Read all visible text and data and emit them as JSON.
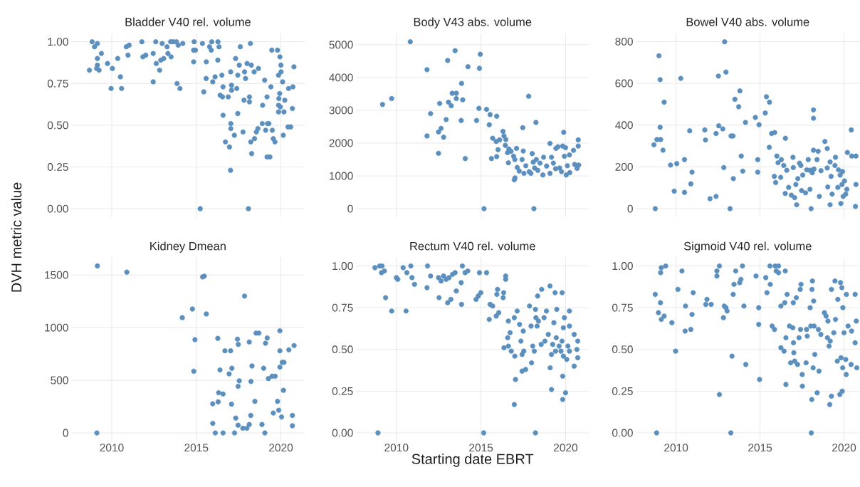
{
  "chart_data": [
    {
      "type": "scatter",
      "title": "Bladder V40 rel. volume",
      "color": "#5b8fbe",
      "grid": true,
      "tick_labels": "y",
      "xlim": [
        2007.6,
        2021.4
      ],
      "ylim": [
        -0.05,
        1.05
      ],
      "xticks": [
        2010,
        2015,
        2020
      ],
      "yticks": [
        {
          "value": 0,
          "label": "0.00"
        },
        {
          "value": 0.25,
          "label": "0.25"
        },
        {
          "value": 0.5,
          "label": "0.50"
        },
        {
          "value": 0.75,
          "label": "0.75"
        },
        {
          "value": 1,
          "label": "1.00"
        }
      ],
      "x": [
        2008.68,
        2008.84,
        2008.98,
        2009.15,
        2009.39,
        2009.15,
        2009.15,
        2009.11,
        2009.25,
        2009.75,
        2010.04,
        2009.96,
        2010.35,
        2010.51,
        2010.58,
        2010.86,
        2011.03,
        2010.96,
        2011.78,
        2011.84,
        2012.01,
        2012.45,
        2012.6,
        2012.63,
        2012.45,
        2012.83,
        2012.9,
        2013.07,
        2012.98,
        2013.27,
        2013.32,
        2013.48,
        2013.63,
        2013.82,
        2013.51,
        2013.93,
        2014.2,
        2013.86,
        2014.03,
        2014.84,
        2014.95,
        2014.87,
        2014.84,
        2015.23,
        2015.36,
        2015.59,
        2015.44,
        2015.58,
        2015.78,
        2015.91,
        2015.88,
        2016.28,
        2016.34,
        2015.97,
        2016.11,
        2016.27,
        2016.51,
        2016.41,
        2016.58,
        2016.55,
        2016.89,
        2016.58,
        2016.72,
        2016.96,
        2017.02,
        2017.03,
        2017.04,
        2017.04,
        2017.08,
        2017.08,
        2017.25,
        2017.32,
        2017.39,
        2017.45,
        2017.45,
        2017.54,
        2017.6,
        2017.76,
        2017.85,
        2017.91,
        2017.82,
        2018.0,
        2018.08,
        2018.14,
        2018.14,
        2018.2,
        2018.25,
        2018.22,
        2018.27,
        2018.42,
        2018.44,
        2018.55,
        2018.64,
        2018.67,
        2018.92,
        2018.9,
        2019.04,
        2019.1,
        2019.18,
        2019.21,
        2019.29,
        2019.18,
        2019.35,
        2019.41,
        2019.46,
        2019.49,
        2019.55,
        2019.65,
        2019.8,
        2019.94,
        2020.0,
        2020.01,
        2019.86,
        2019.93,
        2019.88,
        2019.86,
        2019.86,
        2019.97,
        2020.1,
        2020.18,
        2020.23,
        2020.14,
        2020.42,
        2020.58,
        2020.45,
        2020.71,
        2020.68,
        2020.77
      ],
      "values": [
        0.83,
        1.0,
        0.97,
        0.99,
        0.93,
        0.9,
        0.86,
        0.84,
        0.83,
        0.87,
        0.84,
        0.72,
        0.9,
        0.79,
        0.72,
        0.97,
        0.98,
        0.92,
        1.0,
        0.91,
        0.92,
        0.93,
        1.0,
        0.87,
        0.76,
        0.83,
        0.89,
        0.9,
        0.99,
        0.97,
        0.93,
        1.0,
        1.0,
        1.0,
        0.91,
        0.98,
        0.99,
        0.75,
        0.72,
        0.95,
        0.95,
        1.0,
        0.88,
        0.0,
        0.99,
        0.88,
        0.7,
        0.78,
        0.97,
        1.0,
        0.95,
        1.0,
        0.97,
        0.76,
        0.79,
        0.89,
        0.8,
        0.68,
        0.73,
        0.67,
        0.67,
        0.56,
        0.4,
        0.37,
        0.23,
        0.82,
        0.51,
        0.48,
        0.74,
        0.71,
        0.44,
        0.9,
        0.72,
        0.8,
        0.57,
        0.86,
        0.97,
        0.46,
        0.82,
        0.78,
        0.65,
        0.87,
        0.0,
        0.64,
        0.67,
        0.99,
        0.86,
        0.4,
        0.33,
        0.82,
        0.42,
        0.46,
        0.48,
        0.84,
        0.62,
        0.51,
        0.77,
        0.47,
        0.67,
        0.51,
        0.51,
        0.31,
        0.31,
        0.73,
        0.95,
        0.47,
        0.42,
        0.4,
        0.95,
        0.91,
        0.86,
        0.82,
        0.8,
        0.69,
        0.66,
        0.62,
        0.58,
        0.61,
        0.76,
        0.58,
        0.65,
        0.44,
        0.49,
        0.49,
        0.72,
        0.73,
        0.6,
        0.85
      ]
    },
    {
      "type": "scatter",
      "title": "Body V43 abs. volume",
      "color": "#5b8fbe",
      "grid": true,
      "tick_labels": "y",
      "xlim": [
        2007.6,
        2021.4
      ],
      "ylim": [
        -255,
        5345
      ],
      "xticks": [
        2010,
        2015,
        2020
      ],
      "yticks": [
        0,
        1000,
        2000,
        3000,
        4000,
        5000
      ],
      "x": [
        2009.18,
        2009.72,
        2010.82,
        2011.81,
        2011.81,
        2012.02,
        2012.49,
        2012.49,
        2012.56,
        2012.64,
        2012.79,
        2012.94,
        2013.03,
        2013.08,
        2013.24,
        2013.3,
        2013.47,
        2013.54,
        2013.54,
        2013.85,
        2013.83,
        2013.92,
        2014.07,
        2014.23,
        2014.74,
        2014.91,
        2014.96,
        2014.88,
        2015.18,
        2015.33,
        2015.54,
        2015.93,
        2015.49,
        2015.62,
        2015.69,
        2015.93,
        2016.01,
        2015.9,
        2016.1,
        2016.3,
        2016.36,
        2016.47,
        2016.44,
        2016.65,
        2016.57,
        2016.62,
        2016.78,
        2016.93,
        2017.0,
        2017.1,
        2017.01,
        2016.97,
        2017.14,
        2017.26,
        2017.43,
        2017.47,
        2017.5,
        2017.54,
        2017.65,
        2017.82,
        2017.85,
        2017.95,
        2018.03,
        2018.09,
        2018.13,
        2018.17,
        2018.25,
        2018.27,
        2018.36,
        2018.49,
        2018.66,
        2018.7,
        2018.88,
        2019.08,
        2019.08,
        2019.17,
        2019.28,
        2019.41,
        2019.43,
        2019.55,
        2019.65,
        2019.76,
        2019.89,
        2019.83,
        2020.0,
        2019.93,
        2020.04,
        2020.11,
        2020.23,
        2020.25,
        2020.47,
        2020.54,
        2020.68,
        2020.75,
        2020.75,
        2020.78
      ],
      "values": [
        3180,
        3360,
        5090,
        4240,
        2220,
        2900,
        2340,
        1690,
        3210,
        2450,
        2180,
        2720,
        4520,
        3250,
        3140,
        3520,
        4820,
        3520,
        3360,
        3820,
        2690,
        3320,
        1530,
        4330,
        2690,
        4280,
        4710,
        3060,
        0,
        3030,
        2870,
        2820,
        2560,
        1530,
        2150,
        1590,
        1800,
        2050,
        2100,
        2360,
        2220,
        2110,
        1930,
        1820,
        1710,
        1400,
        1750,
        1600,
        1500,
        1840,
        940,
        880,
        1260,
        1150,
        1500,
        2470,
        1760,
        1080,
        1310,
        3430,
        1130,
        1080,
        1680,
        1420,
        0,
        1240,
        2630,
        1500,
        1170,
        1390,
        1030,
        1570,
        1300,
        1990,
        1080,
        1570,
        1390,
        1220,
        1840,
        1890,
        1240,
        1130,
        2330,
        1910,
        1860,
        1600,
        1030,
        1310,
        1640,
        1100,
        1780,
        1350,
        1230,
        1910,
        2100,
        1330
      ]
    },
    {
      "type": "scatter",
      "title": "Bowel V40 abs. volume",
      "color": "#5b8fbe",
      "grid": true,
      "tick_labels": "y",
      "xlim": [
        2007.6,
        2020.93
      ],
      "ylim": [
        -40,
        839
      ],
      "xticks": [
        2010,
        2015,
        2020
      ],
      "yticks": [
        0,
        200,
        400,
        600,
        800
      ],
      "x": [
        2008.76,
        2008.68,
        2008.86,
        2009.08,
        2009.05,
        2009.05,
        2008.98,
        2009.29,
        2009.22,
        2009.67,
        2010.04,
        2009.89,
        2010.28,
        2010.5,
        2010.5,
        2010.81,
        2010.95,
        2010.88,
        2011.71,
        2011.75,
        2012.02,
        2012.38,
        2012.38,
        2012.52,
        2012.54,
        2012.78,
        2012.84,
        2012.89,
        2012.97,
        2013.21,
        2013.27,
        2013.39,
        2013.41,
        2013.5,
        2013.73,
        2013.8,
        2013.88,
        2013.97,
        2014.13,
        2014.72,
        2014.86,
        2014.86,
        2014.94,
        2015.31,
        2015.38,
        2015.56,
        2015.55,
        2015.69,
        2015.87,
        2015.85,
        2015.93,
        2016.0,
        2016.07,
        2016.23,
        2016.27,
        2016.41,
        2016.51,
        2016.5,
        2016.59,
        2016.7,
        2016.86,
        2016.96,
        2016.98,
        2017.06,
        2017.18,
        2017.13,
        2017.25,
        2017.35,
        2017.43,
        2017.47,
        2017.54,
        2017.71,
        2017.78,
        2017.87,
        2017.97,
        2017.97,
        2018.04,
        2018.11,
        2018.18,
        2018.18,
        2018.18,
        2018.21,
        2018.39,
        2018.46,
        2018.53,
        2018.63,
        2018.86,
        2019.0,
        2019.0,
        2019.03,
        2019.17,
        2019.17,
        2019.23,
        2019.29,
        2019.49,
        2019.46,
        2019.63,
        2019.67,
        2019.77,
        2019.81,
        2019.91,
        2019.88,
        2019.95,
        2020.03,
        2020.1,
        2020.17,
        2020.2,
        2020.43,
        2020.46,
        2020.71,
        2020.68,
        2020.71
      ],
      "values": [
        0,
        306,
        331,
        331,
        390,
        618,
        732,
        510,
        280,
        209,
        216,
        84,
        624,
        235,
        78,
        373,
        175,
        119,
        377,
        329,
        48,
        59,
        360,
        635,
        397,
        382,
        197,
        799,
        654,
        0,
        348,
        348,
        144,
        524,
        488,
        564,
        252,
        180,
        413,
        437,
        235,
        175,
        402,
        458,
        536,
        510,
        294,
        360,
        365,
        155,
        125,
        252,
        220,
        150,
        235,
        207,
        337,
        73,
        184,
        102,
        65,
        246,
        197,
        53,
        19,
        116,
        144,
        218,
        207,
        87,
        161,
        76,
        186,
        235,
        93,
        184,
        0,
        172,
        473,
        433,
        280,
        190,
        235,
        275,
        59,
        182,
        322,
        288,
        195,
        104,
        19,
        224,
        155,
        70,
        246,
        207,
        102,
        186,
        161,
        25,
        178,
        116,
        59,
        133,
        70,
        93,
        269,
        377,
        252,
        252,
        11,
        116
      ]
    },
    {
      "type": "scatter",
      "title": "Kidney Dmean",
      "ylabel": "DVH metric value",
      "color": "#5b8fbe",
      "grid": true,
      "xlim": [
        2007.6,
        2021.4
      ],
      "ylim": [
        -79,
        1665
      ],
      "xticks": [
        2010,
        2015,
        2020
      ],
      "yticks": [
        0,
        500,
        1000,
        1500
      ],
      "x": [
        2009.15,
        2009.12,
        2010.89,
        2015.37,
        2015.47,
        2014.17,
        2014.77,
        2015.59,
        2014.92,
        2014.85,
        2017.85,
        2015.97,
        2015.97,
        2016.12,
        2016.27,
        2016.29,
        2016.32,
        2016.4,
        2016.58,
        2016.58,
        2016.69,
        2017.03,
        2016.94,
        2017.1,
        2017.08,
        2017.26,
        2017.33,
        2017.43,
        2017.48,
        2017.54,
        2017.47,
        2017.47,
        2017.75,
        2017.99,
        2018.13,
        2018.13,
        2018.22,
        2018.23,
        2018.29,
        2018.46,
        2018.53,
        2018.7,
        2018.88,
        2018.98,
        2019.05,
        2019.09,
        2019.19,
        2019.26,
        2019.48,
        2019.66,
        2019.55,
        2019.8,
        2019.87,
        2019.94,
        2019.94,
        2019.94,
        2020.04,
        2020.08,
        2020.18,
        2020.15,
        2020.47,
        2020.78,
        2020.68,
        2020.68
      ],
      "values": [
        1586,
        0,
        1527,
        1482,
        1489,
        1095,
        1177,
        1130,
        886,
        586,
        1300,
        277,
        91,
        0,
        898,
        295,
        382,
        598,
        370,
        0,
        780,
        780,
        561,
        614,
        273,
        0,
        141,
        891,
        841,
        495,
        443,
        73,
        45,
        45,
        80,
        864,
        166,
        489,
        636,
        300,
        948,
        948,
        80,
        614,
        0,
        852,
        902,
        516,
        539,
        539,
        189,
        300,
        216,
        970,
        780,
        625,
        152,
        670,
        670,
        405,
        789,
        830,
        166,
        68
      ]
    },
    {
      "type": "scatter",
      "title": "Rectum V40 rel. volume",
      "xlabel": "Starting date EBRT",
      "color": "#5b8fbe",
      "grid": true,
      "xlim": [
        2007.6,
        2021.4
      ],
      "ylim": [
        -0.05,
        1.05
      ],
      "xticks": [
        2010,
        2015,
        2020
      ],
      "yticks": [
        {
          "value": 0,
          "label": "0.00"
        },
        {
          "value": 0.25,
          "label": "0.25"
        },
        {
          "value": 0.5,
          "label": "0.50"
        },
        {
          "value": 0.75,
          "label": "0.75"
        },
        {
          "value": 1,
          "label": "1.00"
        }
      ],
      "x": [
        2008.73,
        2008.91,
        2009.01,
        2009.15,
        2009.12,
        2009.29,
        2009.36,
        2009.72,
        2010.0,
        2010.08,
        2010.4,
        2010.57,
        2010.62,
        2010.85,
        2010.92,
        2011.07,
        2011.84,
        2011.81,
        2012.02,
        2012.49,
        2012.52,
        2012.64,
        2012.79,
        2012.94,
        2013.03,
        2013.22,
        2013.11,
        2013.32,
        2013.47,
        2013.54,
        2013.83,
        2013.85,
        2013.9,
        2014.06,
        2014.22,
        2014.71,
        2014.84,
        2014.91,
        2014.99,
        2015.16,
        2015.33,
        2015.49,
        2015.54,
        2015.69,
        2015.9,
        2016.05,
        2015.98,
        2015.94,
        2016.31,
        2016.34,
        2016.46,
        2016.46,
        2016.36,
        2016.62,
        2016.62,
        2016.72,
        2016.58,
        2016.79,
        2016.97,
        2017.04,
        2017.0,
        2016.97,
        2017.14,
        2017.28,
        2017.36,
        2017.43,
        2017.5,
        2017.43,
        2017.64,
        2017.53,
        2017.87,
        2017.96,
        2017.99,
        2018.06,
        2018.15,
        2018.22,
        2018.22,
        2018.25,
        2018.32,
        2018.35,
        2018.4,
        2018.59,
        2018.56,
        2018.73,
        2018.78,
        2018.87,
        2018.98,
        2019.08,
        2019.09,
        2019.17,
        2019.17,
        2019.24,
        2019.31,
        2019.38,
        2019.48,
        2019.45,
        2019.41,
        2019.62,
        2019.73,
        2019.8,
        2019.79,
        2019.83,
        2019.83,
        2019.87,
        2019.93,
        2019.87,
        2020.0,
        2020.07,
        2020.14,
        2020.23,
        2020.23,
        2020.23,
        2020.51,
        2020.51,
        2020.72,
        2020.67,
        2020.72
      ],
      "values": [
        0.99,
        0.0,
        1.0,
        1.0,
        0.96,
        0.97,
        0.81,
        0.73,
        0.93,
        0.92,
        0.99,
        0.73,
        0.96,
        1.0,
        0.93,
        0.89,
        1.0,
        0.87,
        0.94,
        0.93,
        0.81,
        0.91,
        0.94,
        0.92,
        0.78,
        0.8,
        0.93,
        0.95,
        0.96,
        0.85,
        0.9,
        0.77,
        1.0,
        0.96,
        0.97,
        0.8,
        0.82,
        0.96,
        0.84,
        0.0,
        0.96,
        0.68,
        0.77,
        0.76,
        0.7,
        0.72,
        0.86,
        0.83,
        0.81,
        0.84,
        0.94,
        0.92,
        0.51,
        0.67,
        0.52,
        0.6,
        0.57,
        0.49,
        0.17,
        0.32,
        0.46,
        0.69,
        0.73,
        0.65,
        0.55,
        0.47,
        0.61,
        0.37,
        0.38,
        0.49,
        0.76,
        0.64,
        0.42,
        0.52,
        0.49,
        0.0,
        0.74,
        0.69,
        0.64,
        0.82,
        0.67,
        0.86,
        0.53,
        0.69,
        0.55,
        0.73,
        0.59,
        0.88,
        0.39,
        0.26,
        0.47,
        0.53,
        0.66,
        0.84,
        0.74,
        0.57,
        0.49,
        0.52,
        0.49,
        0.84,
        0.55,
        0.34,
        0.2,
        0.63,
        0.69,
        0.46,
        0.24,
        0.44,
        0.52,
        0.49,
        0.64,
        0.73,
        0.59,
        0.4,
        0.55,
        0.5,
        0.45
      ]
    },
    {
      "type": "scatter",
      "title": "Sigmoid V40 rel. volume",
      "color": "#5b8fbe",
      "grid": true,
      "xlim": [
        2007.6,
        2020.93
      ],
      "ylim": [
        -0.05,
        1.05
      ],
      "xticks": [
        2010,
        2015,
        2020
      ],
      "yticks": [
        {
          "value": 0,
          "label": "0.00"
        },
        {
          "value": 0.25,
          "label": "0.25"
        },
        {
          "value": 0.5,
          "label": "0.50"
        },
        {
          "value": 0.75,
          "label": "0.75"
        },
        {
          "value": 1,
          "label": "1.00"
        }
      ],
      "x": [
        2008.84,
        2008.76,
        2008.95,
        2009.07,
        2009.12,
        2009.29,
        2009.08,
        2009.12,
        2009.38,
        2009.75,
        2009.97,
        2010.11,
        2010.35,
        2010.56,
        2010.54,
        2010.88,
        2010.95,
        2011.02,
        2011.77,
        2011.84,
        2012.09,
        2012.43,
        2012.43,
        2012.58,
        2012.58,
        2012.82,
        2012.87,
        2012.97,
        2013.04,
        2013.26,
        2013.33,
        2013.4,
        2013.45,
        2013.55,
        2013.79,
        2013.86,
        2013.95,
        2014.04,
        2014.15,
        2014.76,
        2014.92,
        2014.92,
        2014.97,
        2015.34,
        2015.41,
        2015.59,
        2015.61,
        2015.72,
        2015.86,
        2015.9,
        2015.96,
        2016.1,
        2016.1,
        2016.24,
        2016.24,
        2016.43,
        2016.47,
        2016.5,
        2016.54,
        2016.54,
        2016.61,
        2016.75,
        2016.82,
        2016.95,
        2016.98,
        2016.99,
        2017.01,
        2017.06,
        2017.16,
        2017.23,
        2017.32,
        2017.39,
        2017.44,
        2017.41,
        2017.51,
        2017.52,
        2017.74,
        2017.77,
        2017.81,
        2017.98,
        2018.02,
        2018.05,
        2018.08,
        2018.09,
        2018.12,
        2018.16,
        2018.19,
        2018.22,
        2018.26,
        2018.4,
        2018.47,
        2018.51,
        2018.62,
        2018.83,
        2018.93,
        2019.01,
        2019.04,
        2019.11,
        2019.18,
        2019.15,
        2019.25,
        2019.25,
        2019.39,
        2019.46,
        2019.49,
        2019.6,
        2019.63,
        2019.75,
        2019.79,
        2019.82,
        2019.92,
        2019.89,
        2019.93,
        2019.87,
        2020.0,
        2020.13,
        2020.1,
        2020.14,
        2020.24,
        2020.45,
        2020.42,
        2020.66,
        2020.66,
        2020.73,
        2020.76
      ],
      "values": [
        0.0,
        0.83,
        0.72,
        0.78,
        0.68,
        0.7,
        0.96,
        0.99,
        1.0,
        0.66,
        0.49,
        0.86,
        0.97,
        0.76,
        0.61,
        0.62,
        0.71,
        0.84,
        0.77,
        0.8,
        0.77,
        0.94,
        0.97,
        1.0,
        0.23,
        0.69,
        0.76,
        0.75,
        0.73,
        0.0,
        0.46,
        0.83,
        0.89,
        0.97,
        0.9,
        0.92,
        1.0,
        0.76,
        0.41,
        0.94,
        0.75,
        0.65,
        0.32,
        0.93,
        0.84,
        1.0,
        0.89,
        0.64,
        0.62,
        1.0,
        0.97,
        1.0,
        0.96,
        0.76,
        0.51,
        0.49,
        0.78,
        0.97,
        0.57,
        0.29,
        0.83,
        0.64,
        0.42,
        0.63,
        0.78,
        0.54,
        0.48,
        0.43,
        0.81,
        0.41,
        0.57,
        0.86,
        0.89,
        0.62,
        0.35,
        0.28,
        0.42,
        0.62,
        0.58,
        0.75,
        0.64,
        0.0,
        0.2,
        0.86,
        0.91,
        0.39,
        0.79,
        0.64,
        0.47,
        0.24,
        0.62,
        0.37,
        0.59,
        0.72,
        0.7,
        0.57,
        0.67,
        0.52,
        0.55,
        0.17,
        0.22,
        0.86,
        0.6,
        0.91,
        0.68,
        0.43,
        0.8,
        0.23,
        0.9,
        0.45,
        0.39,
        0.25,
        0.75,
        0.87,
        0.6,
        0.35,
        0.44,
        0.83,
        0.64,
        0.61,
        0.41,
        0.83,
        0.54,
        0.67,
        0.39
      ]
    }
  ]
}
